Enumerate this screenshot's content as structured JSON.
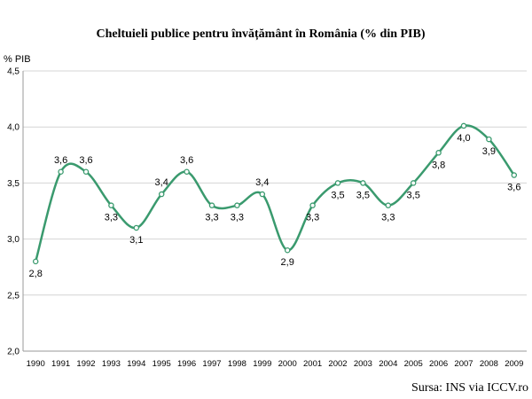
{
  "chart_data": {
    "type": "line",
    "title": "Cheltuieli publice pentru învățământ în România   (% din PIB)",
    "ylabel": "% PIB",
    "xlabel": "",
    "ylim": [
      2.0,
      4.5
    ],
    "yticks": [
      "2,0",
      "2,5",
      "3,0",
      "3,5",
      "4,0",
      "4,5"
    ],
    "ytick_values": [
      2.0,
      2.5,
      3.0,
      3.5,
      4.0,
      4.5
    ],
    "categories": [
      "1990",
      "1991",
      "1992",
      "1993",
      "1994",
      "1995",
      "1996",
      "1997",
      "1998",
      "1999",
      "2000",
      "2001",
      "2002",
      "2003",
      "2004",
      "2005",
      "2006",
      "2007",
      "2008",
      "2009"
    ],
    "values": [
      2.8,
      3.6,
      3.6,
      3.3,
      3.1,
      3.4,
      3.6,
      3.3,
      3.3,
      3.4,
      2.9,
      3.3,
      3.5,
      3.5,
      3.3,
      3.5,
      3.77,
      4.01,
      3.89,
      3.57
    ],
    "labels": [
      "2,8",
      "3,6",
      "3,6",
      "3,3",
      "3,1",
      "3,4",
      "3,6",
      "3,3",
      "3,3",
      "3,4",
      "2,9",
      "3,3",
      "3,5",
      "3,5",
      "3,3",
      "3,5",
      "3,8",
      "4,0",
      "3,9",
      "3,6"
    ],
    "grid": true,
    "line_color": "#3a9a6e",
    "source": "Sursa: INS via ICCV.ro"
  }
}
